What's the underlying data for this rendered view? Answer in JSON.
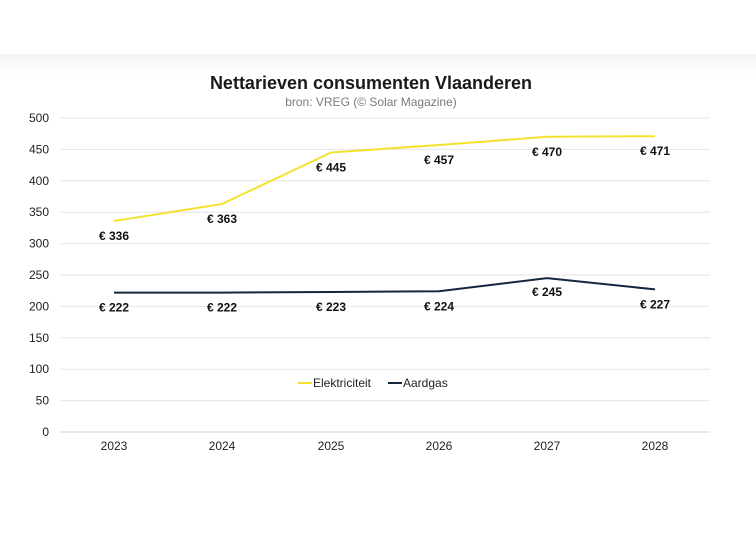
{
  "chart_data": {
    "type": "line",
    "title": "Nettarieven consumenten Vlaanderen",
    "subtitle": "bron: VREG (© Solar Magazine)",
    "xlabel": "",
    "ylabel": "",
    "x": [
      "2023",
      "2024",
      "2025",
      "2026",
      "2027",
      "2028"
    ],
    "ylim": [
      0,
      500
    ],
    "yticks": [
      0,
      50,
      100,
      150,
      200,
      250,
      300,
      350,
      400,
      450,
      500
    ],
    "grid": true,
    "legend_position": "center",
    "series": [
      {
        "name": "Elektriciteit",
        "color": "#f5e12f",
        "values": [
          336,
          363,
          445,
          457,
          470,
          471
        ],
        "labels": [
          "€ 336",
          "€ 363",
          "€ 445",
          "€ 457",
          "€ 470",
          "€ 471"
        ]
      },
      {
        "name": "Aardgas",
        "color": "#13273f",
        "values": [
          222,
          222,
          223,
          224,
          245,
          227
        ],
        "labels": [
          "€ 222",
          "€ 222",
          "€ 223",
          "€ 224",
          "€ 245",
          "€ 227"
        ]
      }
    ]
  }
}
